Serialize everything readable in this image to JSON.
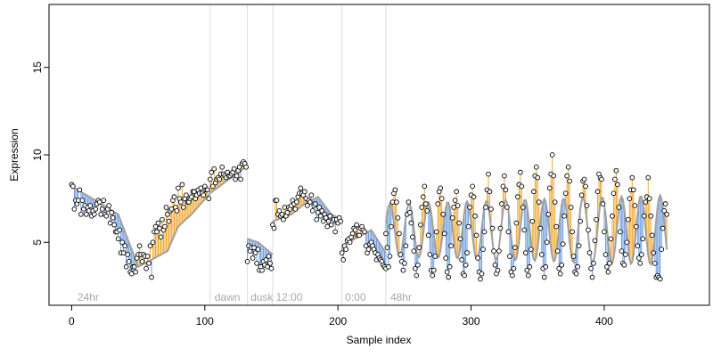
{
  "chart_data": {
    "type": "scatter",
    "title": "",
    "xlabel": "Sample index",
    "ylabel": "Expression",
    "xlim": [
      -17,
      479
    ],
    "ylim": [
      1.4,
      18.6
    ],
    "xticks": [
      0,
      100,
      200,
      300,
      400
    ],
    "yticks": [
      5,
      10,
      15
    ],
    "grid": false,
    "colors": {
      "points": "#000000",
      "fitted_line": "#a0a0a0",
      "residual_positive": "#f0a830",
      "residual_negative": "#6a9be0",
      "boundary_lines": "#dcdcdc",
      "annotation_text": "#a8a8a8"
    },
    "boundaries": [
      104,
      132,
      151,
      203,
      236
    ],
    "annotations": [
      {
        "text": "24hr",
        "x": 3
      },
      {
        "text": "dawn",
        "x": 106
      },
      {
        "text": "dusk",
        "x": 133
      },
      {
        "text": "12:00",
        "x": 152
      },
      {
        "text": "0:00",
        "x": 204
      },
      {
        "text": "48hr",
        "x": 238
      }
    ],
    "segments": [
      {
        "name": "",
        "x_start": 0,
        "fitted": [
          [
            0,
            8.2
          ],
          [
            20,
            7.3
          ],
          [
            35,
            6.6
          ],
          [
            50,
            3.6
          ],
          [
            60,
            4.0
          ],
          [
            72,
            4.5
          ],
          [
            80,
            5.9
          ],
          [
            90,
            6.6
          ],
          [
            104,
            7.8
          ]
        ],
        "observed": [
          8.3,
          8.2,
          6.9,
          7.4,
          7.2,
          7.4,
          8.0,
          6.6,
          7.4,
          6.9,
          7.1,
          6.6,
          7.0,
          6.8,
          7.1,
          6.5,
          6.8,
          6.6,
          6.9,
          7.2,
          7.4,
          7.3,
          6.6,
          6.9,
          7.4,
          6.6,
          6.5,
          6.9,
          7.1,
          6.1,
          6.7,
          6.4,
          6.0,
          5.6,
          5.6,
          5.2,
          5.7,
          4.4,
          5.0,
          4.4,
          4.8,
          3.6,
          4.3,
          3.9,
          3.3,
          3.2,
          3.6,
          3.6,
          3.3,
          4.1,
          4.3,
          4.8,
          4.3,
          3.9,
          4.3,
          4.2,
          3.5,
          4.2,
          3.8,
          4.8,
          3.0,
          5.0,
          5.6,
          5.9,
          5.6,
          6.1,
          5.8,
          5.3,
          6.3,
          5.7,
          5.9,
          7.0,
          6.6,
          6.2,
          6.8,
          6.9,
          7.4,
          7.6,
          7.0,
          6.8,
          8.1,
          7.5,
          7.3,
          8.3,
          7.0,
          7.5,
          7.7,
          7.3,
          7.3,
          7.5,
          7.6,
          7.9,
          7.9,
          7.5,
          7.7,
          8.0,
          7.8,
          8.1,
          7.8,
          7.7,
          8.2,
          8.0,
          8.0,
          7.5
        ]
      },
      {
        "name": "",
        "x_start": 104,
        "fitted": [
          [
            104,
            7.8
          ],
          [
            118,
            8.6
          ],
          [
            126,
            9.0
          ],
          [
            132,
            9.4
          ]
        ],
        "observed": [
          8.6,
          9.0,
          8.2,
          9.2,
          8.4,
          8.6,
          8.7,
          8.6,
          8.9,
          9.3,
          8.9,
          8.8,
          8.7,
          9.0,
          8.8,
          8.8,
          8.9,
          9.0,
          9.2,
          8.6,
          8.8,
          9.1,
          9.3,
          8.6,
          9.5,
          9.6,
          9.5,
          9.3
        ]
      },
      {
        "name": "",
        "x_start": 132,
        "fitted": [
          [
            132,
            5.2
          ],
          [
            140,
            5.0
          ],
          [
            151,
            4.3
          ]
        ],
        "observed": [
          3.9,
          4.8,
          4.5,
          4.7,
          4.1,
          4.7,
          4.4,
          3.8,
          4.6,
          3.4,
          3.6,
          3.4,
          3.9,
          3.7,
          4.0,
          3.6,
          4.2,
          3.8,
          3.5
        ]
      },
      {
        "name": "",
        "x_start": 151,
        "fitted": [
          [
            151,
            6.2
          ],
          [
            165,
            6.6
          ],
          [
            175,
            7.2
          ],
          [
            185,
            7.6
          ],
          [
            195,
            6.6
          ],
          [
            203,
            6.3
          ]
        ],
        "observed": [
          6.0,
          5.8,
          7.4,
          7.4,
          6.6,
          6.8,
          6.5,
          6.6,
          6.3,
          7.0,
          6.5,
          6.7,
          7.0,
          6.9,
          7.1,
          7.4,
          7.2,
          6.9,
          7.3,
          7.6,
          7.8,
          8.1,
          7.8,
          7.7,
          7.9,
          7.5,
          7.1,
          7.4,
          7.3,
          7.7,
          6.8,
          7.1,
          7.2,
          6.3,
          6.7,
          7.0,
          6.5,
          6.8,
          6.2,
          6.6,
          6.4,
          5.9,
          6.2,
          6.5,
          6.0,
          6.2,
          6.3,
          5.6,
          6.3,
          6.1,
          6.4,
          6.2
        ]
      },
      {
        "name": "",
        "x_start": 203,
        "fitted": [
          [
            203,
            4.8
          ],
          [
            215,
            5.3
          ],
          [
            225,
            5.7
          ],
          [
            236,
            4.4
          ]
        ],
        "observed": [
          4.4,
          4.0,
          4.8,
          4.6,
          5.1,
          5.2,
          5.0,
          5.3,
          5.5,
          5.8,
          5.7,
          6.0,
          5.4,
          5.4,
          5.8,
          5.9,
          5.7,
          5.6,
          4.8,
          4.4,
          4.6,
          4.9,
          5.0,
          4.8,
          4.6,
          4.4,
          4.0,
          4.3,
          4.1,
          4.0,
          3.9,
          3.7,
          3.6,
          3.5
        ]
      },
      {
        "name": "",
        "x_start": 236,
        "oscillating": true,
        "period": 14.5,
        "mean": 5.7,
        "amplitude": 1.5,
        "amplitude_end": 2.0,
        "fitted": [],
        "observed": []
      }
    ],
    "oscillating_observed": [
      5.5,
      4.7,
      3.6,
      4.2,
      5.9,
      7.3,
      7.8,
      8.0,
      7.3,
      6.4,
      5.5,
      4.3,
      3.9,
      3.4,
      3.8,
      4.8,
      6.6,
      7.3,
      6.7,
      6.1,
      5.3,
      4.5,
      3.5,
      3.1,
      3.7,
      4.7,
      6.0,
      7.0,
      7.6,
      8.2,
      7.2,
      6.8,
      5.4,
      4.3,
      3.4,
      3.1,
      3.4,
      4.2,
      5.6,
      7.2,
      7.9,
      8.1,
      7.5,
      6.6,
      5.5,
      4.1,
      3.3,
      3.0,
      3.6,
      4.8,
      6.4,
      7.0,
      7.4,
      7.9,
      7.1,
      6.1,
      5.2,
      4.0,
      3.2,
      3.1,
      3.7,
      4.4,
      5.9,
      7.0,
      7.7,
      8.2,
      7.6,
      6.5,
      5.4,
      4.1,
      3.3,
      2.9,
      3.2,
      4.6,
      5.6,
      7.0,
      8.0,
      8.9,
      7.9,
      6.9,
      5.8,
      4.5,
      3.7,
      3.2,
      3.4,
      4.5,
      5.8,
      7.2,
      8.2,
      8.8,
      8.0,
      7.0,
      5.6,
      4.2,
      3.3,
      3.1,
      3.5,
      4.7,
      6.1,
      7.6,
      8.3,
      9.0,
      8.2,
      7.0,
      5.7,
      4.4,
      3.4,
      3.1,
      3.6,
      4.6,
      6.2,
      7.9,
      8.8,
      9.3,
      8.7,
      7.3,
      5.8,
      4.3,
      3.5,
      3.0,
      3.6,
      5.0,
      6.6,
      8.1,
      8.9,
      10.0,
      8.8,
      7.3,
      5.9,
      4.5,
      3.5,
      3.2,
      3.7,
      4.9,
      6.5,
      7.8,
      8.8,
      9.3,
      8.5,
      7.0,
      5.6,
      4.2,
      3.3,
      3.2,
      3.6,
      4.8,
      6.2,
      7.7,
      8.5,
      8.6,
      8.2,
      7.1,
      5.7,
      4.4,
      3.5,
      3.0,
      3.8,
      5.1,
      6.3,
      7.9,
      8.9,
      8.7,
      8.6,
      7.2,
      5.6,
      4.3,
      3.6,
      3.3,
      3.8,
      5.2,
      6.5,
      7.8,
      8.6,
      9.1,
      8.3,
      7.0,
      5.6,
      4.5,
      3.8,
      3.7,
      4.3,
      5.0,
      6.3,
      7.5,
      8.0,
      8.7,
      8.0,
      7.1,
      5.9,
      4.8,
      4.1,
      3.8,
      4.3,
      5.2,
      6.5,
      7.3,
      7.6,
      8.7,
      7.5,
      6.5,
      5.4,
      4.4,
      3.8,
      3.0,
      3.1,
      3.0,
      2.9,
      4.6,
      5.8,
      6.8,
      7.2,
      6.6
    ]
  }
}
